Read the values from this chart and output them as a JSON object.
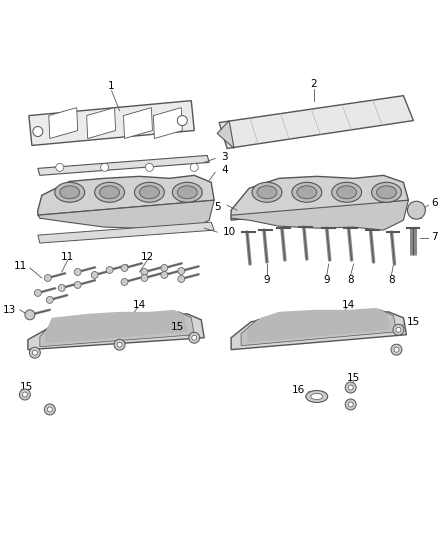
{
  "bg_color": "#ffffff",
  "line_color": "#555555",
  "label_color": "#000000",
  "fig_width": 4.38,
  "fig_height": 5.33,
  "dpi": 100
}
